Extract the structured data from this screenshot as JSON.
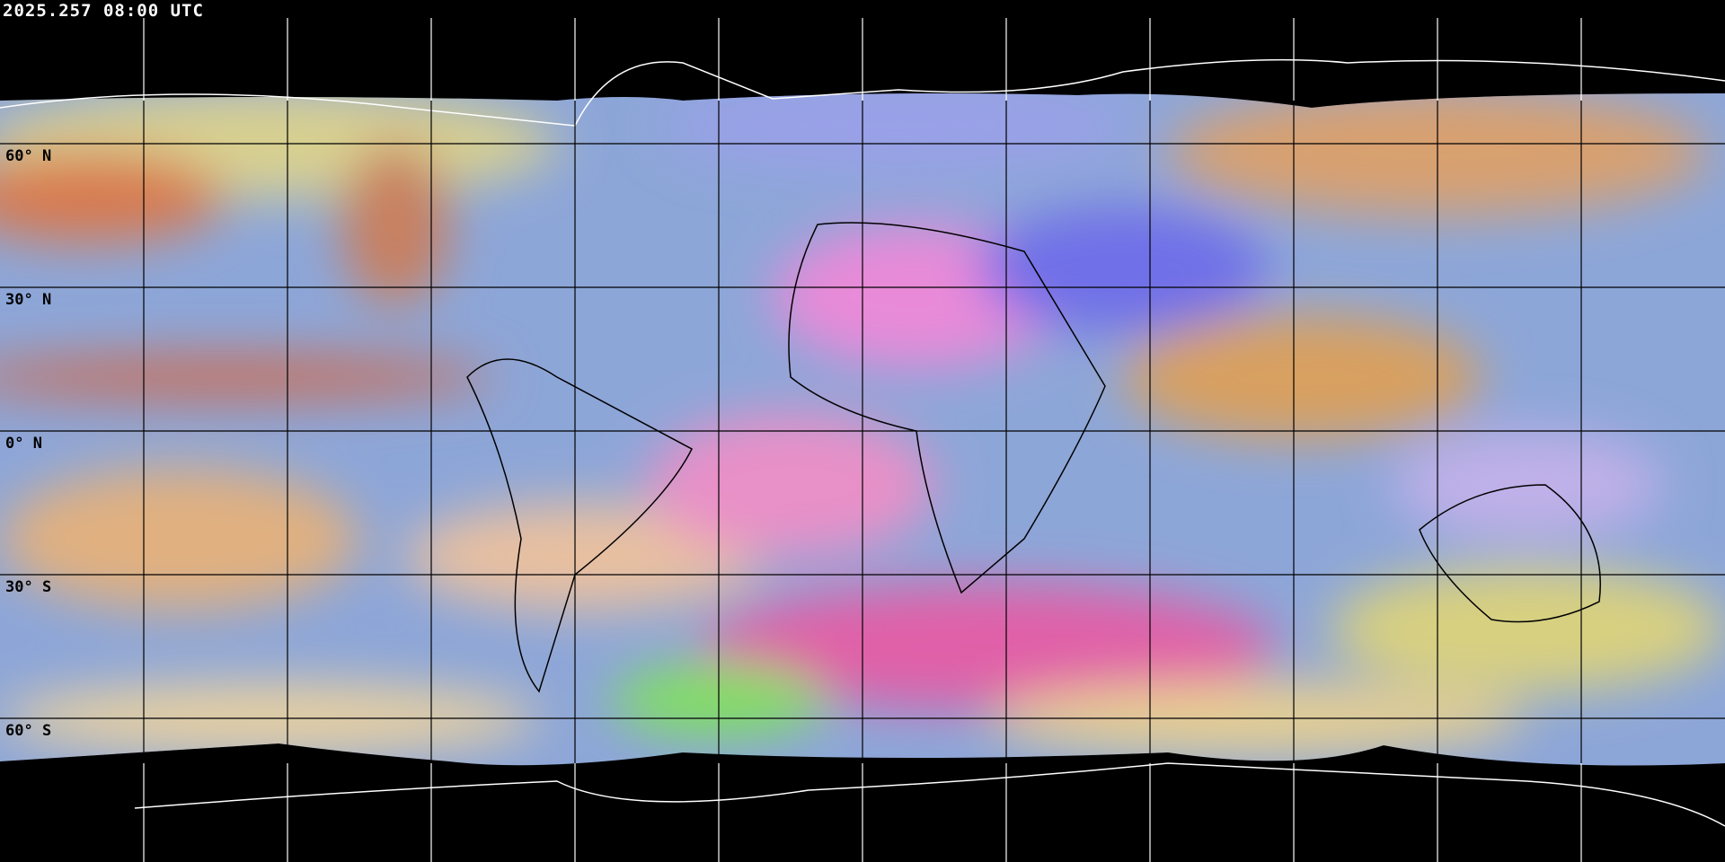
{
  "timestamp": "2025.257 08:00 UTC",
  "latitude_labels": [
    "60° N",
    "30° N",
    "0° N",
    "30° S",
    "60° S"
  ],
  "projection": "equirectangular",
  "graticule_spacing_degrees": 30,
  "colors": {
    "background": "#000000",
    "gridline_over_space": "#ffffff",
    "gridline_over_imagery": "#000000",
    "coastline_polar": "#ffffff",
    "coastline": "#000000"
  }
}
